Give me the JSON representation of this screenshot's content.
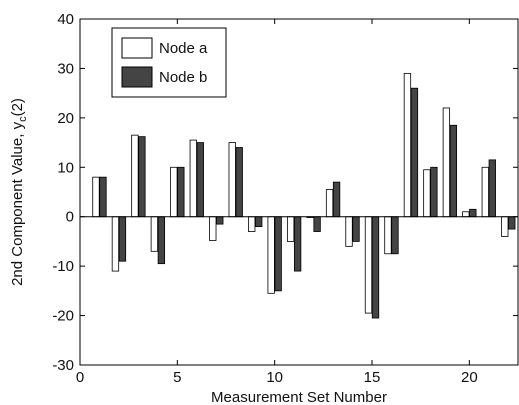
{
  "chart_data": {
    "type": "bar",
    "xlabel": "Measurement Set Number",
    "ylabel_main": "2nd Component Value, y",
    "ylabel_sub": "c",
    "ylabel_tail": "(2)",
    "xlim": [
      0,
      22.5
    ],
    "ylim": [
      -30,
      40
    ],
    "xticks": [
      0,
      5,
      10,
      15,
      20
    ],
    "yticks": [
      -30,
      -20,
      -10,
      0,
      10,
      20,
      30,
      40
    ],
    "x": [
      1,
      2,
      3,
      4,
      5,
      6,
      7,
      8,
      9,
      10,
      11,
      12,
      13,
      14,
      15,
      16,
      17,
      18,
      19,
      20,
      21,
      22
    ],
    "series": [
      {
        "name": "Node a",
        "color": "#ffffff",
        "values": [
          8,
          -11,
          16.5,
          -7,
          10,
          15.5,
          -4.8,
          15,
          -3,
          -15.5,
          -5,
          0,
          5.5,
          -6,
          -19.5,
          -7.5,
          29,
          9.5,
          22,
          1,
          10,
          -4
        ]
      },
      {
        "name": "Node b",
        "color": "#444444",
        "values": [
          8,
          -9,
          16.2,
          -9.5,
          10,
          15,
          -1.5,
          14,
          -2,
          -15,
          -11,
          -3,
          7,
          -5,
          -20.5,
          -7.5,
          26,
          10,
          18.5,
          1.5,
          11.5,
          -2.5
        ]
      }
    ],
    "legend_position": "top-left",
    "grid": false
  }
}
